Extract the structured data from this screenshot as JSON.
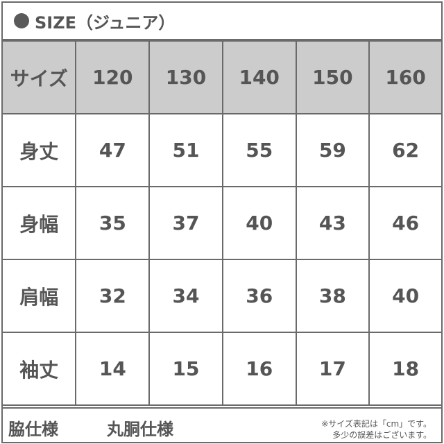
{
  "title": "SIZE（ジュニア）",
  "table": {
    "header_label": "サイズ",
    "sizes": [
      "120",
      "130",
      "140",
      "150",
      "160"
    ],
    "rows": [
      {
        "label": "身丈",
        "values": [
          "47",
          "51",
          "55",
          "59",
          "62"
        ]
      },
      {
        "label": "身幅",
        "values": [
          "35",
          "37",
          "40",
          "43",
          "46"
        ]
      },
      {
        "label": "肩幅",
        "values": [
          "32",
          "34",
          "36",
          "38",
          "40"
        ]
      },
      {
        "label": "袖丈",
        "values": [
          "14",
          "15",
          "16",
          "17",
          "18"
        ]
      }
    ]
  },
  "footer": {
    "label": "脇仕様",
    "value": "丸胴仕様",
    "note_line1": "※サイズ表記は「cm」です。",
    "note_line2": "多少の誤差はございます。"
  },
  "colors": {
    "header_bg": "#cccccc",
    "text": "#555555",
    "border": "#6a6a6a"
  }
}
